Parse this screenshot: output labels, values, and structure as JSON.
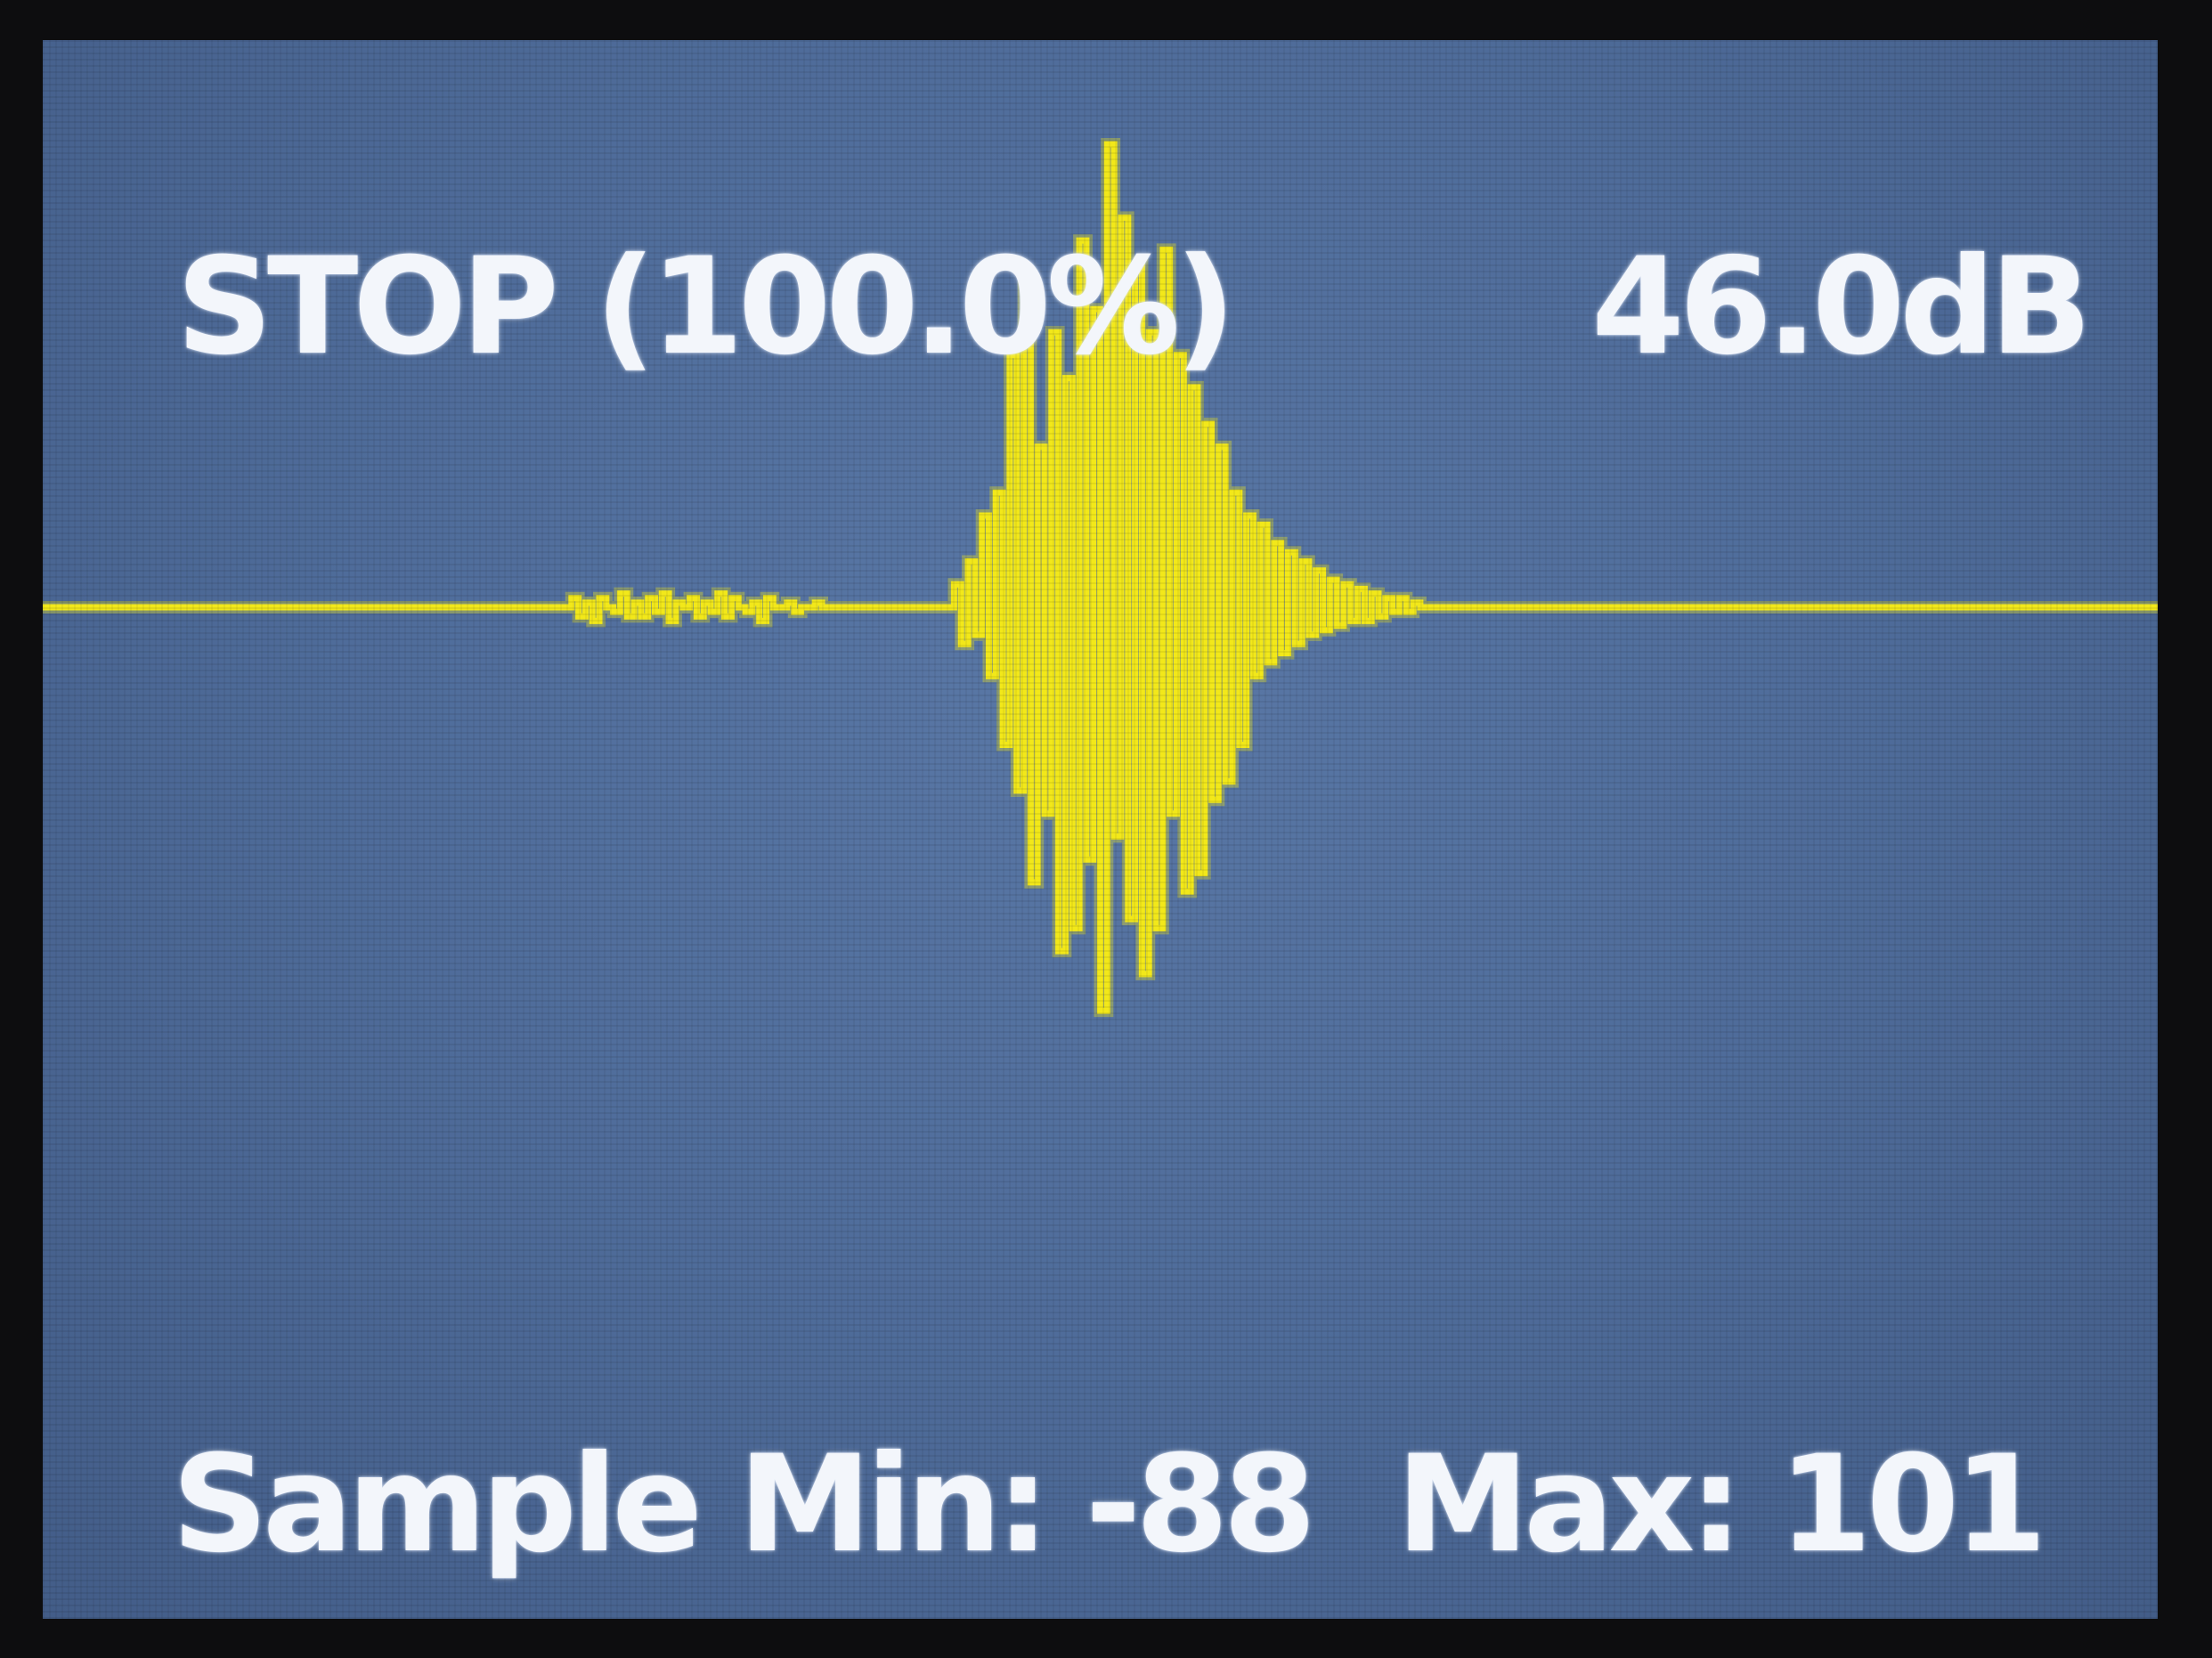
{
  "display": {
    "status_text": "STOP (100.0%)",
    "level_text": "46.0dB",
    "min_text": "Sample Min: -88",
    "max_text": "Max: 101"
  },
  "colors": {
    "background": "#4f6c9a",
    "trace": "#f2e81a",
    "text": "#f3f6fb"
  },
  "chart_data": {
    "type": "line",
    "sample_min": -88,
    "sample_max": 101,
    "ylim": [
      -101,
      101
    ],
    "values": [
      0,
      0,
      0,
      0,
      0,
      0,
      0,
      0,
      0,
      0,
      0,
      0,
      0,
      0,
      0,
      0,
      0,
      0,
      0,
      0,
      0,
      0,
      0,
      0,
      0,
      0,
      0,
      0,
      0,
      0,
      0,
      0,
      0,
      0,
      0,
      0,
      0,
      0,
      0,
      0,
      0,
      0,
      0,
      0,
      0,
      0,
      0,
      0,
      0,
      0,
      0,
      0,
      0,
      0,
      0,
      0,
      0,
      0,
      0,
      0,
      0,
      0,
      0,
      0,
      0,
      0,
      0,
      0,
      0,
      0,
      0,
      0,
      0,
      0,
      0,
      0,
      2,
      -2,
      1,
      -3,
      2,
      0,
      -1,
      3,
      -2,
      1,
      -2,
      2,
      -1,
      3,
      -3,
      1,
      0,
      2,
      -2,
      1,
      -1,
      3,
      -2,
      2,
      0,
      -1,
      1,
      -3,
      2,
      0,
      0,
      1,
      -1,
      0,
      0,
      1,
      0,
      0,
      0,
      0,
      0,
      0,
      0,
      0,
      0,
      0,
      0,
      0,
      0,
      0,
      0,
      0,
      0,
      0,
      0,
      5,
      -8,
      10,
      -6,
      20,
      -15,
      25,
      -30,
      55,
      -40,
      70,
      -60,
      35,
      -45,
      60,
      -75,
      50,
      -70,
      80,
      -55,
      65,
      -88,
      101,
      -50,
      85,
      -68,
      75,
      -80,
      60,
      -70,
      78,
      -45,
      55,
      -62,
      48,
      -58,
      40,
      -42,
      35,
      -38,
      25,
      -30,
      20,
      -15,
      18,
      -12,
      14,
      -10,
      12,
      -8,
      10,
      -6,
      8,
      -5,
      6,
      -4,
      5,
      -3,
      4,
      -3,
      3,
      -2,
      2,
      -1,
      2,
      -1,
      1,
      0,
      0,
      0,
      0,
      0,
      0,
      0,
      0,
      0,
      0,
      0,
      0,
      0,
      0,
      0,
      0,
      0,
      0,
      0,
      0,
      0,
      0,
      0,
      0,
      0,
      0,
      0,
      0,
      0,
      0,
      0,
      0,
      0,
      0,
      0,
      0,
      0,
      0,
      0,
      0,
      0,
      0,
      0,
      0,
      0,
      0,
      0,
      0,
      0,
      0,
      0,
      0,
      0,
      0,
      0,
      0,
      0,
      0,
      0,
      0,
      0,
      0,
      0,
      0,
      0,
      0,
      0,
      0,
      0,
      0,
      0,
      0,
      0,
      0,
      0,
      0,
      0,
      0,
      0,
      0,
      0,
      0,
      0,
      0,
      0,
      0,
      0,
      0,
      0,
      0,
      0,
      0,
      0,
      0,
      0,
      0,
      0,
      0,
      0,
      0,
      0,
      0,
      0,
      0,
      0,
      0,
      0
    ]
  }
}
